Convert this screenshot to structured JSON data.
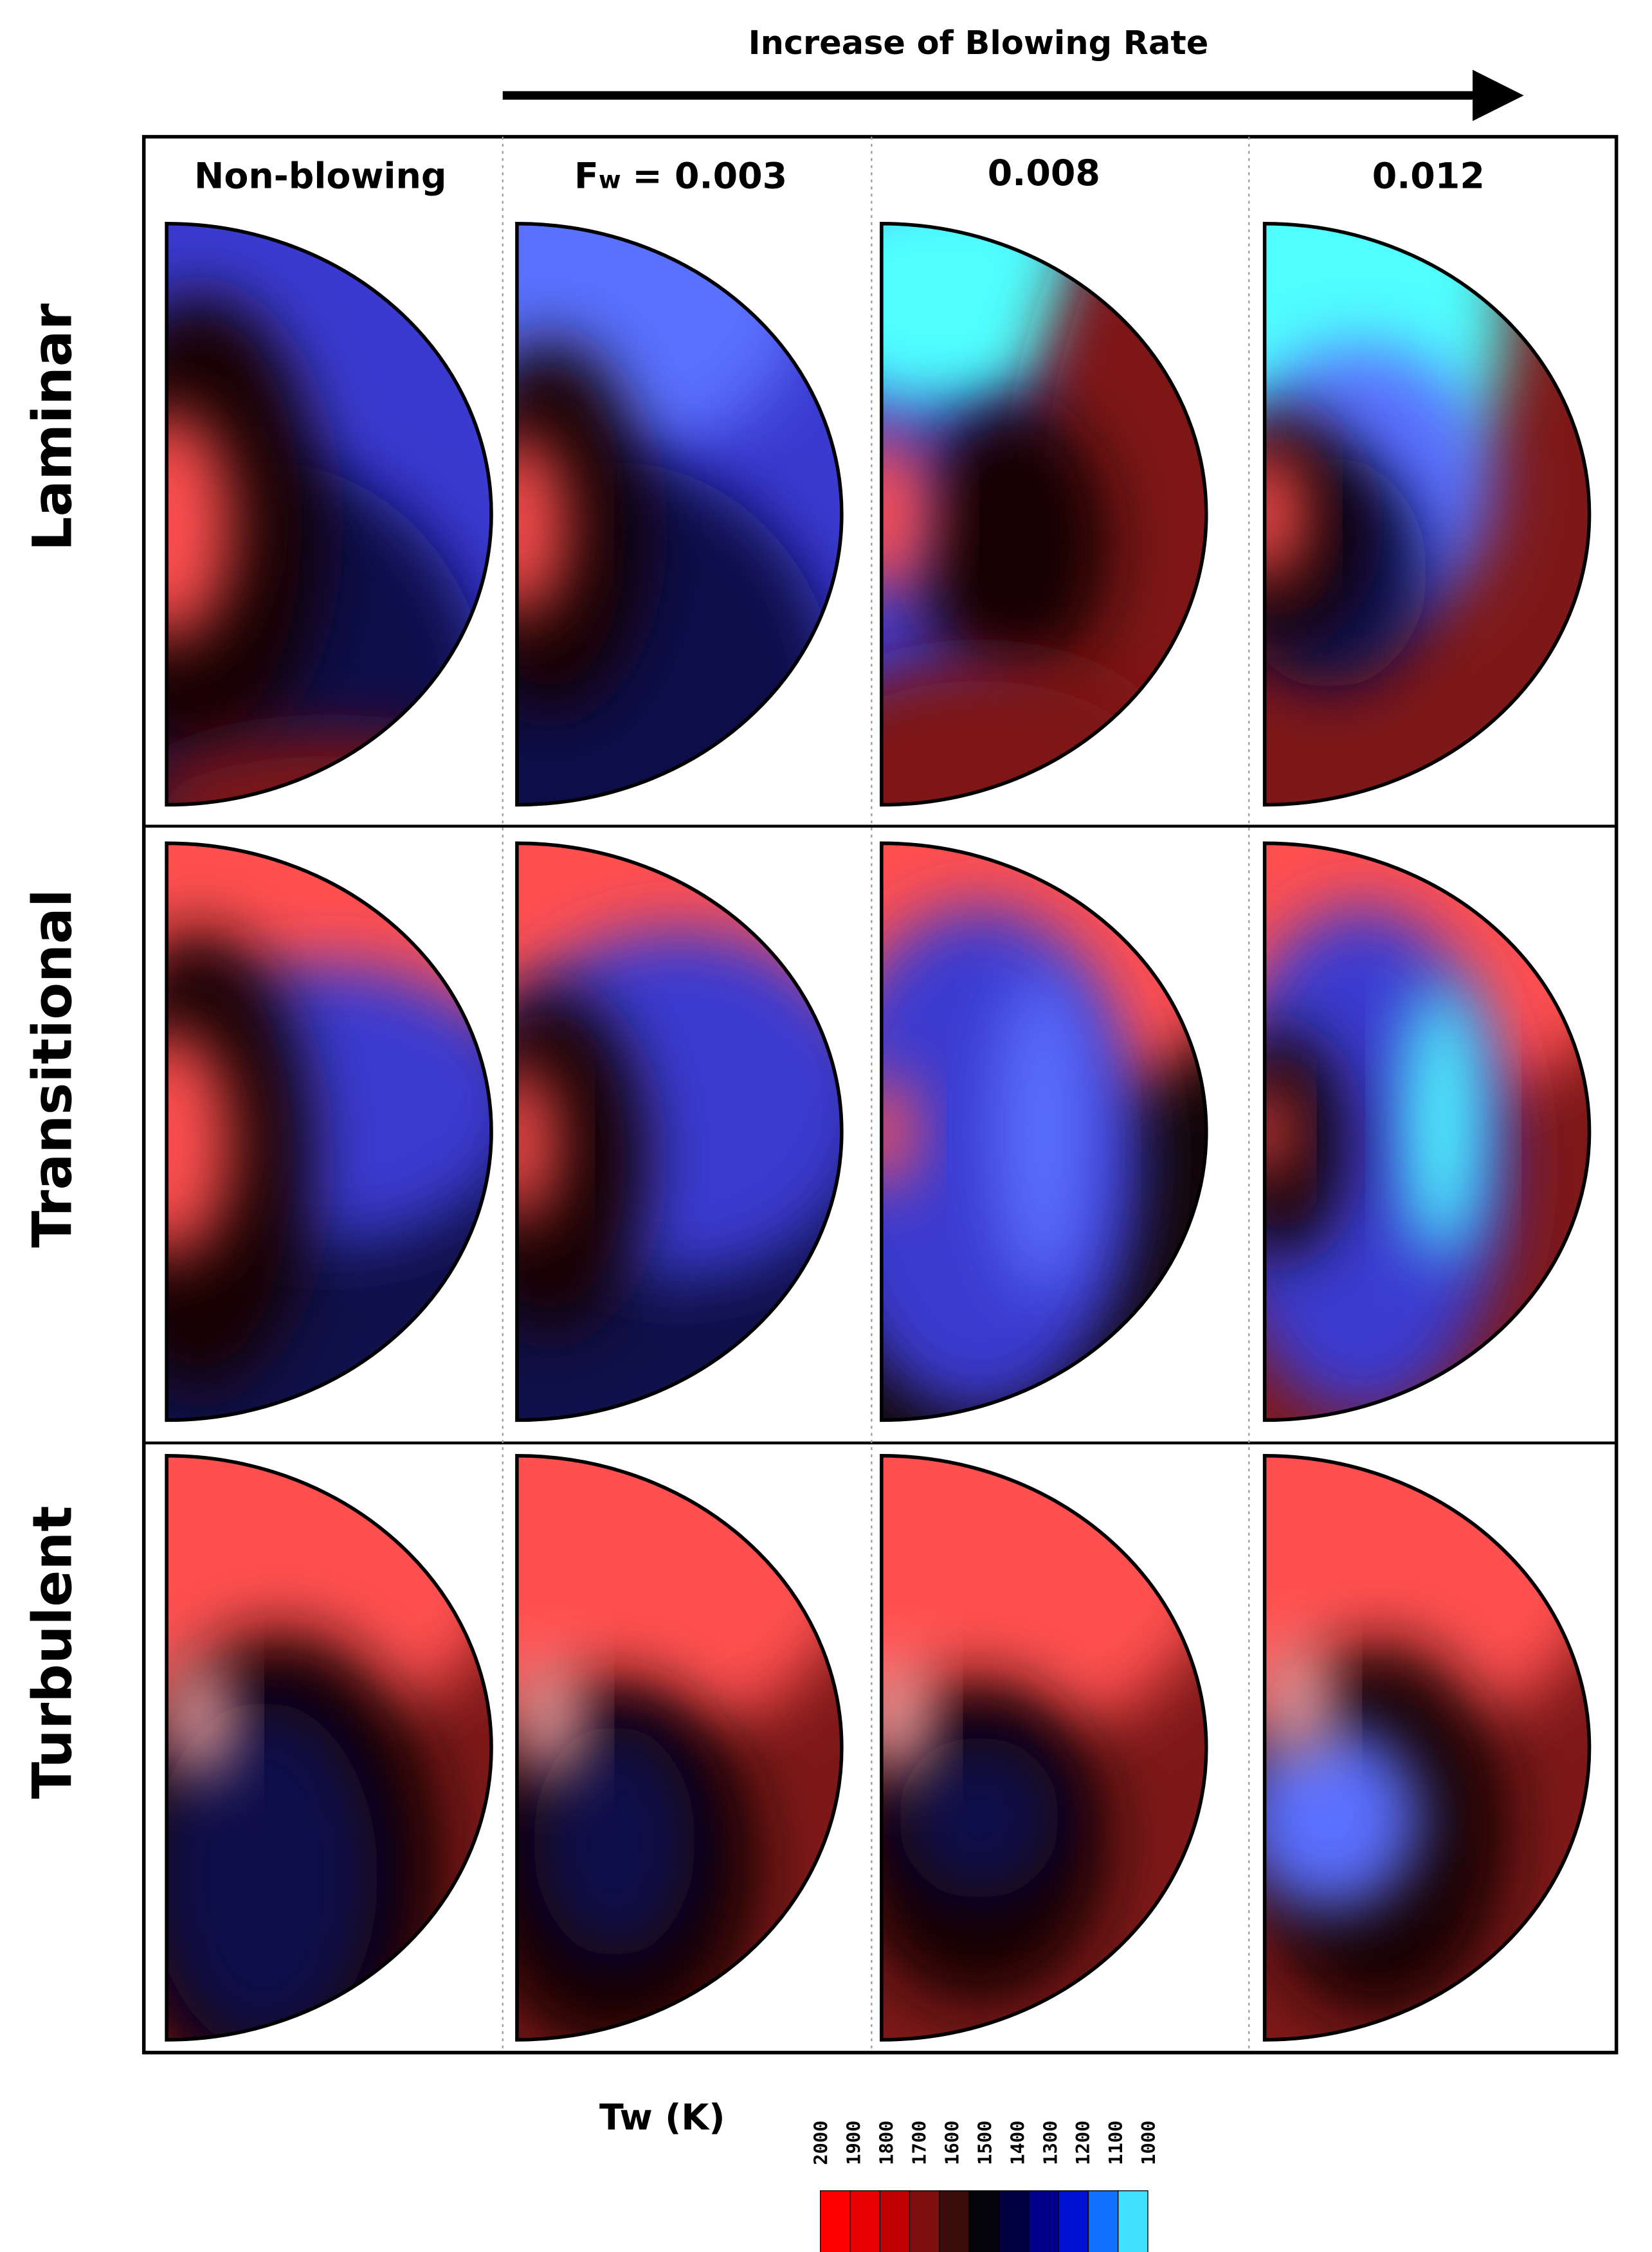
{
  "header": {
    "arrow_label": "Increase of Blowing Rate"
  },
  "columns": [
    {
      "label": "Non-blowing"
    },
    {
      "symbol": "F",
      "subscript": "w",
      "label": "= 0.003"
    },
    {
      "label": "0.008"
    },
    {
      "label": "0.012"
    }
  ],
  "rows": [
    {
      "label": "Laminar"
    },
    {
      "label": "Transitional"
    },
    {
      "label": "Turbulent"
    }
  ],
  "colorbar": {
    "label": "Tw (K)",
    "ticks": [
      2000,
      1900,
      1800,
      1700,
      1600,
      1500,
      1400,
      1300,
      1200,
      1100,
      1000
    ],
    "colors": [
      "#ff0000",
      "#e80000",
      "#c00000",
      "#801010",
      "#3a0c0c",
      "#05030a",
      "#000040",
      "#00008a",
      "#0010d0",
      "#1070ff",
      "#40e0ff"
    ]
  }
}
